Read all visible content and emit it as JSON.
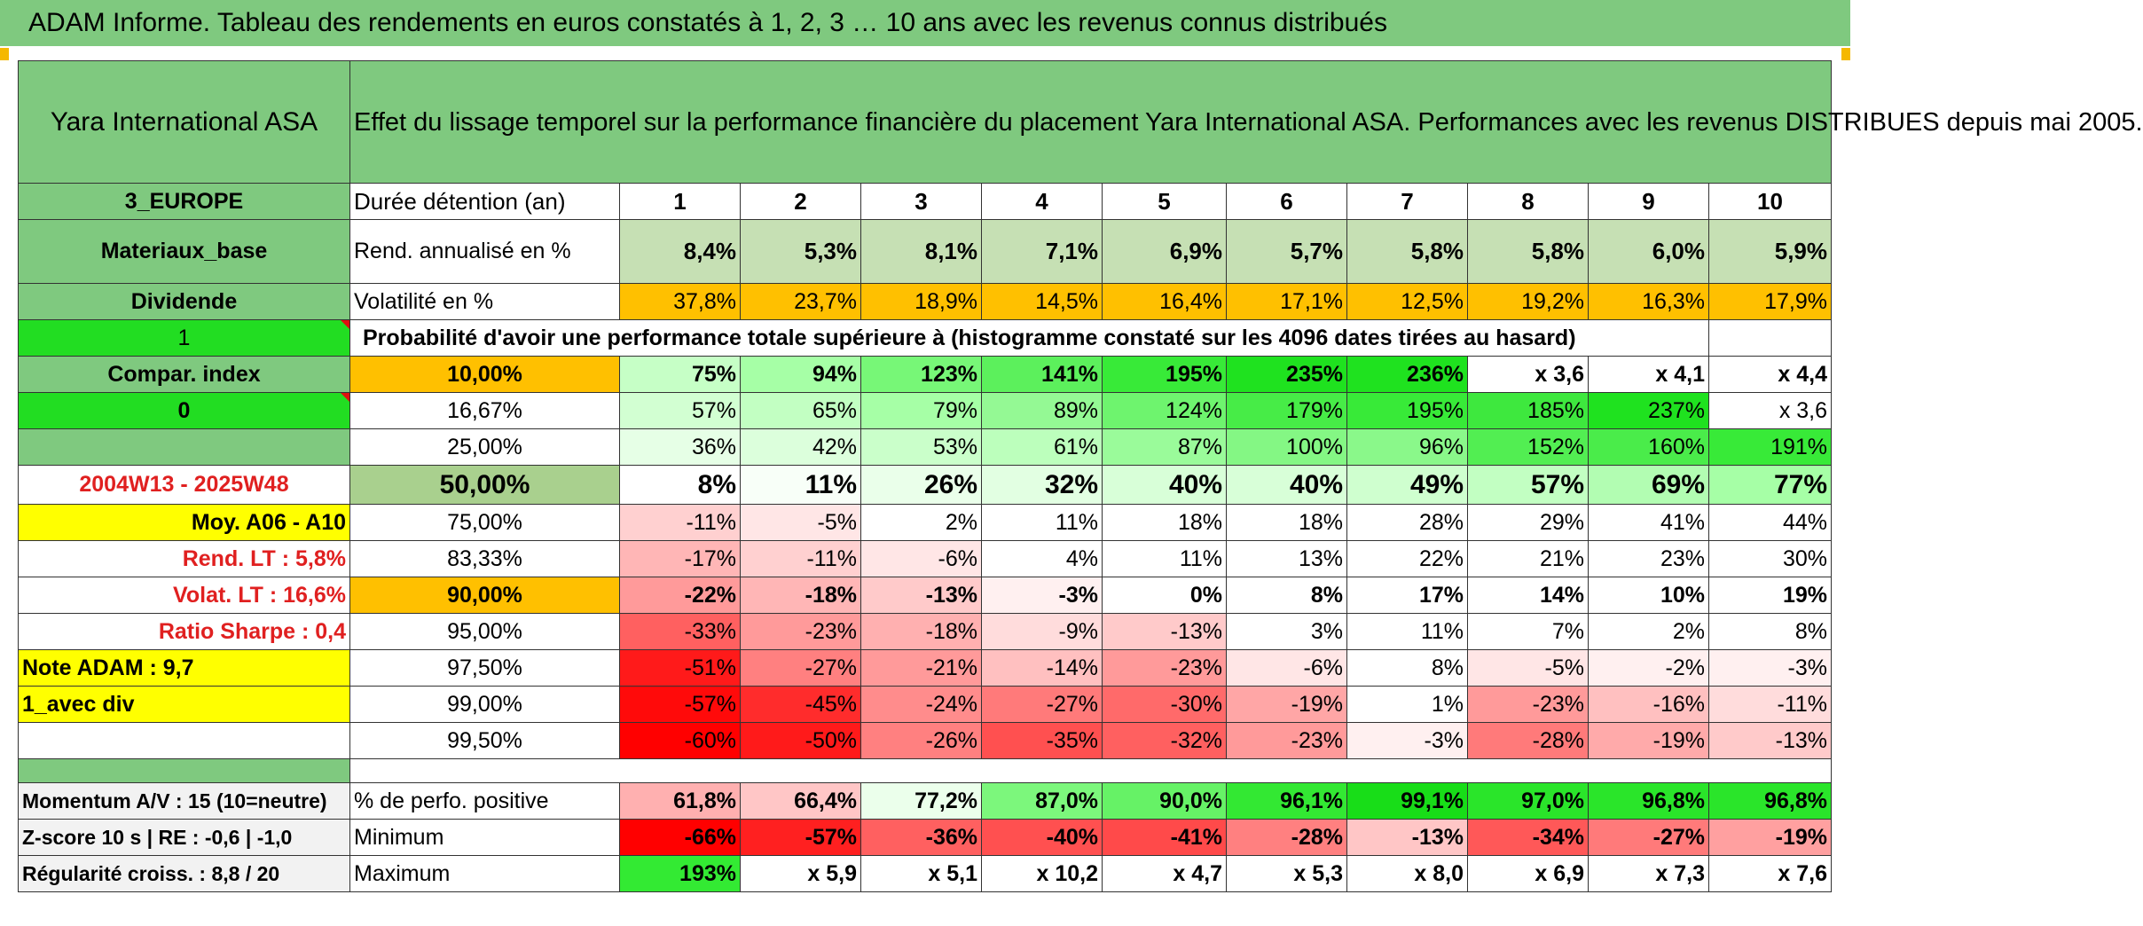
{
  "title": "ADAM Informe. Tableau des rendements en euros constatés à 1, 2, 3 … 10 ans avec les revenus connus distribués",
  "company": "Yara International ASA",
  "description": "Effet du lissage temporel sur la performance financière du placement Yara International ASA. Performances avec les revenus DISTRIBUES depuis mai 2005.",
  "left": {
    "region": "3_EUROPE",
    "sector": "Materiaux_base",
    "dividend": "Dividende",
    "one": "1",
    "compar": "Compar. index",
    "zero": "0",
    "period": "2004W13 - 2025W48",
    "moy": "Moy. A06 - A10",
    "rend_lt": "Rend. LT :   5,8%",
    "volat_lt": "Volat. LT :   16,6%",
    "sharpe": "Ratio Sharpe :   0,4",
    "note": "Note ADAM : 9,7",
    "avec_div": "1_avec div",
    "momentum": "Momentum A/V : 15 (10=neutre)",
    "zscore": "Z-score 10 s | RE : -0,6 | -1,0",
    "regularite": "Régularité croiss. : 8,8 / 20"
  },
  "labels": {
    "duree": "Durée détention (an)",
    "rend": "Rend. annualisé en %",
    "volat": "Volatilité en %",
    "proba": "Probabilité d'avoir une performance totale supérieure à (histogramme constaté sur les 4096 dates tirées au hasard)",
    "positive": "% de perfo. positive",
    "minimum": "Minimum",
    "maximum": "Maximum"
  },
  "years": [
    "1",
    "2",
    "3",
    "4",
    "5",
    "6",
    "7",
    "8",
    "9",
    "10"
  ],
  "rend_values": [
    "8,4%",
    "5,3%",
    "8,1%",
    "7,1%",
    "6,9%",
    "5,7%",
    "5,8%",
    "5,8%",
    "6,0%",
    "5,9%"
  ],
  "volat_values": [
    "37,8%",
    "23,7%",
    "18,9%",
    "14,5%",
    "16,4%",
    "17,1%",
    "12,5%",
    "19,2%",
    "16,3%",
    "17,9%"
  ],
  "percentile_rows": [
    {
      "pct": "10,00%",
      "values": [
        "75%",
        "94%",
        "123%",
        "141%",
        "195%",
        "235%",
        "236%",
        "x 3,6",
        "x 4,1",
        "x 4,4"
      ]
    },
    {
      "pct": "16,67%",
      "values": [
        "57%",
        "65%",
        "79%",
        "89%",
        "124%",
        "179%",
        "195%",
        "185%",
        "237%",
        "x 3,6"
      ]
    },
    {
      "pct": "25,00%",
      "values": [
        "36%",
        "42%",
        "53%",
        "61%",
        "87%",
        "100%",
        "96%",
        "152%",
        "160%",
        "191%"
      ]
    },
    {
      "pct": "50,00%",
      "values": [
        "8%",
        "11%",
        "26%",
        "32%",
        "40%",
        "40%",
        "49%",
        "57%",
        "69%",
        "77%"
      ]
    },
    {
      "pct": "75,00%",
      "values": [
        "-11%",
        "-5%",
        "2%",
        "11%",
        "18%",
        "18%",
        "28%",
        "29%",
        "41%",
        "44%"
      ]
    },
    {
      "pct": "83,33%",
      "values": [
        "-17%",
        "-11%",
        "-6%",
        "4%",
        "11%",
        "13%",
        "22%",
        "21%",
        "23%",
        "30%"
      ]
    },
    {
      "pct": "90,00%",
      "values": [
        "-22%",
        "-18%",
        "-13%",
        "-3%",
        "0%",
        "8%",
        "17%",
        "14%",
        "10%",
        "19%"
      ]
    },
    {
      "pct": "95,00%",
      "values": [
        "-33%",
        "-23%",
        "-18%",
        "-9%",
        "-13%",
        "3%",
        "11%",
        "7%",
        "2%",
        "8%"
      ]
    },
    {
      "pct": "97,50%",
      "values": [
        "-51%",
        "-27%",
        "-21%",
        "-14%",
        "-23%",
        "-6%",
        "8%",
        "-5%",
        "-2%",
        "-3%"
      ]
    },
    {
      "pct": "99,00%",
      "values": [
        "-57%",
        "-45%",
        "-24%",
        "-27%",
        "-30%",
        "-19%",
        "1%",
        "-23%",
        "-16%",
        "-11%"
      ]
    },
    {
      "pct": "99,50%",
      "values": [
        "-60%",
        "-50%",
        "-26%",
        "-35%",
        "-32%",
        "-23%",
        "-3%",
        "-28%",
        "-19%",
        "-13%"
      ]
    }
  ],
  "positive_values": [
    "61,8%",
    "66,4%",
    "77,2%",
    "87,0%",
    "90,0%",
    "96,1%",
    "99,1%",
    "97,0%",
    "96,8%",
    "96,8%"
  ],
  "minimum_values": [
    "-66%",
    "-57%",
    "-36%",
    "-40%",
    "-41%",
    "-28%",
    "-13%",
    "-34%",
    "-27%",
    "-19%"
  ],
  "maximum_values": [
    "193%",
    "x 5,9",
    "x 5,1",
    "x 10,2",
    "x 4,7",
    "x 5,3",
    "x 8,0",
    "x 6,9",
    "x 7,3",
    "x 7,6"
  ],
  "colors": {
    "title_bg": "#7fc97f",
    "side_green": "#7fc97f",
    "bright_green": "#22dd22",
    "yellow": "#ffff00",
    "orange": "#ffc000",
    "rend_bg": "#c6e0b4",
    "median_pct_bg": "#a9d08e",
    "text_red": "#e02020"
  },
  "cell_colors": {
    "percentile": [
      [
        "#c6ffc6",
        "#a6ffa6",
        "#77f777",
        "#5cf05c",
        "#38ea38",
        "#1fe21f",
        "#1fe21f",
        "#ffffff",
        "#ffffff",
        "#ffffff"
      ],
      [
        "#d2ffd2",
        "#c2ffc2",
        "#a6ffa6",
        "#94f994",
        "#6ef46e",
        "#47ec47",
        "#38ea38",
        "#3ee83e",
        "#1fe21f",
        "#ffffff"
      ],
      [
        "#e6ffe6",
        "#dcffdc",
        "#caffca",
        "#bcffbc",
        "#9afb9a",
        "#84f784",
        "#8af88a",
        "#52ee52",
        "#4aec4a",
        "#38ea38"
      ],
      [
        "#ffffff",
        "#f8fff8",
        "#eaffea",
        "#e2ffe2",
        "#d8ffd8",
        "#d8ffd8",
        "#cfffcf",
        "#c2ffc2",
        "#b2fdb2",
        "#a6ffa6"
      ],
      [
        "#ffd0d0",
        "#ffe6e6",
        "#ffffff",
        "#ffffff",
        "#ffffff",
        "#ffffff",
        "#ffffff",
        "#ffffff",
        "#ffffff",
        "#ffffff"
      ],
      [
        "#ffb6b6",
        "#ffd0d0",
        "#ffe6e6",
        "#ffffff",
        "#ffffff",
        "#ffffff",
        "#ffffff",
        "#ffffff",
        "#ffffff",
        "#ffffff"
      ],
      [
        "#ff9a9a",
        "#ffb6b6",
        "#ffcaca",
        "#fff0f0",
        "#ffffff",
        "#ffffff",
        "#ffffff",
        "#ffffff",
        "#ffffff",
        "#ffffff"
      ],
      [
        "#ff6060",
        "#ff9a9a",
        "#ffb0b0",
        "#ffdcdc",
        "#ffcaca",
        "#ffffff",
        "#ffffff",
        "#ffffff",
        "#ffffff",
        "#ffffff"
      ],
      [
        "#ff1a1a",
        "#ff8080",
        "#ff9a9a",
        "#ffc0c0",
        "#ff9a9a",
        "#ffe6e6",
        "#ffffff",
        "#ffe6e6",
        "#fff0f0",
        "#fff0f0"
      ],
      [
        "#ff0a0a",
        "#ff2c2c",
        "#ff8c8c",
        "#ff7a7a",
        "#ff6a6a",
        "#ffa6a6",
        "#ffffff",
        "#ff9a9a",
        "#ffc0c0",
        "#ffdcdc"
      ],
      [
        "#ff0000",
        "#ff1a1a",
        "#ff8080",
        "#ff5050",
        "#ff6060",
        "#ff9a9a",
        "#fff0f0",
        "#ff7a7a",
        "#ffaaaa",
        "#ffcaca"
      ]
    ],
    "positive": [
      "#ffb0b0",
      "#ffc6c6",
      "#ebffeb",
      "#7cf77c",
      "#66f266",
      "#33e833",
      "#18dd18",
      "#2ae52a",
      "#2ae52a",
      "#2ae52a"
    ],
    "minimum": [
      "#ff0000",
      "#ff2020",
      "#ff6060",
      "#ff5050",
      "#ff4a4a",
      "#ff8080",
      "#ffc6c6",
      "#ff5858",
      "#ff7a7a",
      "#ffa0a0"
    ],
    "maximum": [
      "#33ea33",
      "#ffffff",
      "#ffffff",
      "#ffffff",
      "#ffffff",
      "#ffffff",
      "#ffffff",
      "#ffffff",
      "#ffffff",
      "#ffffff"
    ]
  }
}
